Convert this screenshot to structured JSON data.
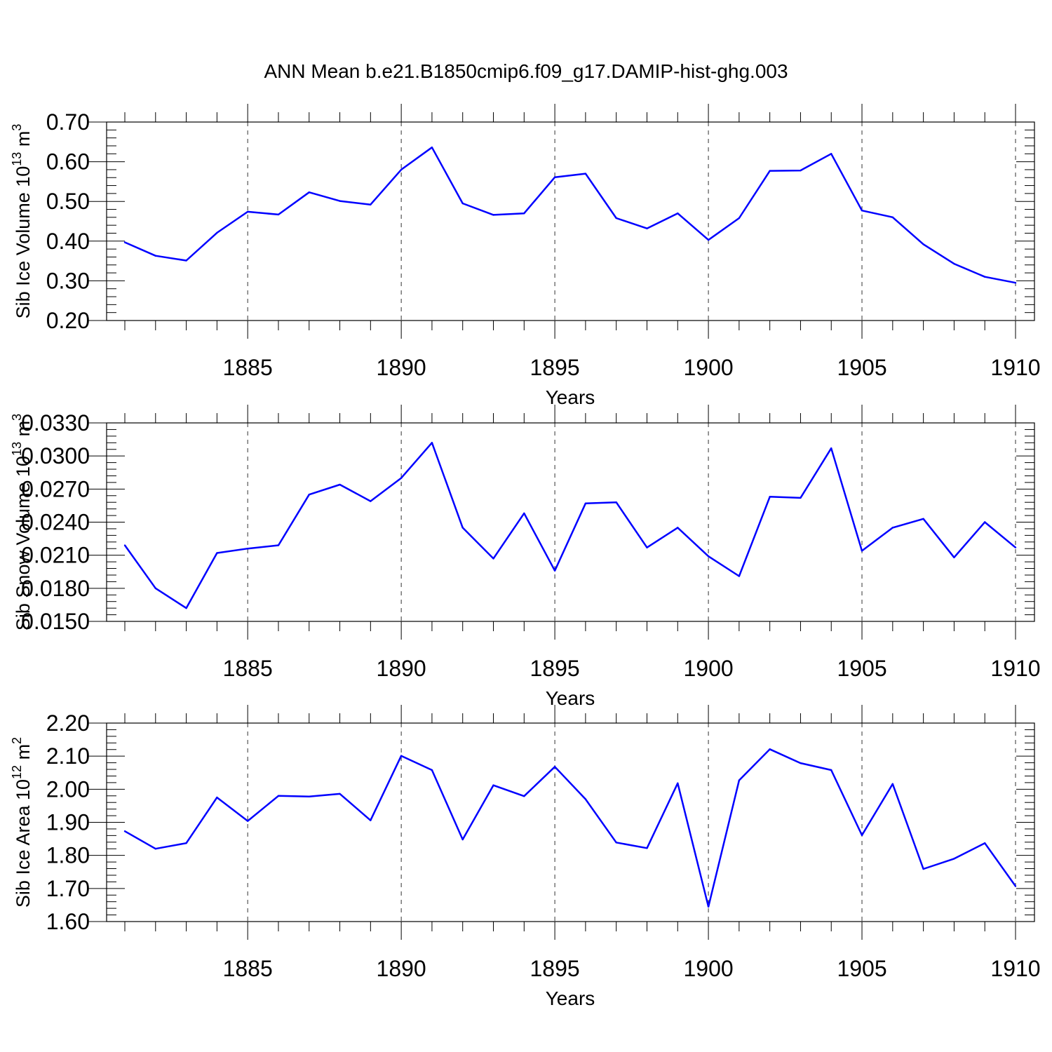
{
  "title": "ANN Mean b.e21.B1850cmip6.f09_g17.DAMIP-hist-ghg.003",
  "chart_data": [
    {
      "type": "line",
      "ylabel_main": "Sib Ice Volume 10",
      "ylabel_exp": "13",
      "ylabel_unit": " m",
      "ylabel_unit_exp": "3",
      "xlabel": "Years",
      "xlim": [
        1881,
        1910
      ],
      "ylim": [
        0.2,
        0.7
      ],
      "yticks": [
        "0.20",
        "0.30",
        "0.40",
        "0.50",
        "0.60",
        "0.70"
      ],
      "xticks": [
        "1885",
        "1890",
        "1895",
        "1900",
        "1905",
        "1910"
      ],
      "x": [
        1881,
        1882,
        1883,
        1884,
        1885,
        1886,
        1887,
        1888,
        1889,
        1890,
        1891,
        1892,
        1893,
        1894,
        1895,
        1896,
        1897,
        1898,
        1899,
        1900,
        1901,
        1902,
        1903,
        1904,
        1905,
        1906,
        1907,
        1908,
        1909,
        1910
      ],
      "values": [
        0.397,
        0.363,
        0.351,
        0.421,
        0.474,
        0.467,
        0.523,
        0.501,
        0.492,
        0.58,
        0.636,
        0.495,
        0.466,
        0.47,
        0.561,
        0.57,
        0.458,
        0.432,
        0.47,
        0.403,
        0.458,
        0.577,
        0.578,
        0.62,
        0.477,
        0.46,
        0.392,
        0.343,
        0.31,
        0.295
      ]
    },
    {
      "type": "line",
      "ylabel_main": "Sib Snow Volume 10",
      "ylabel_exp": "13",
      "ylabel_unit": " m",
      "ylabel_unit_exp": "3",
      "xlabel": "Years",
      "xlim": [
        1881,
        1910
      ],
      "ylim": [
        0.015,
        0.033
      ],
      "yticks": [
        "0.0150",
        "0.0180",
        "0.0210",
        "0.0240",
        "0.0270",
        "0.0300",
        "0.0330"
      ],
      "xticks": [
        "1885",
        "1890",
        "1895",
        "1900",
        "1905",
        "1910"
      ],
      "x": [
        1881,
        1882,
        1883,
        1884,
        1885,
        1886,
        1887,
        1888,
        1889,
        1890,
        1891,
        1892,
        1893,
        1894,
        1895,
        1896,
        1897,
        1898,
        1899,
        1900,
        1901,
        1902,
        1903,
        1904,
        1905,
        1906,
        1907,
        1908,
        1909,
        1910
      ],
      "values": [
        0.0219,
        0.018,
        0.0162,
        0.0212,
        0.0216,
        0.0219,
        0.0265,
        0.0274,
        0.0259,
        0.028,
        0.0312,
        0.0235,
        0.0207,
        0.0248,
        0.0196,
        0.0257,
        0.0258,
        0.0217,
        0.0235,
        0.0209,
        0.0191,
        0.0263,
        0.0262,
        0.0307,
        0.0214,
        0.0235,
        0.0243,
        0.0208,
        0.024,
        0.0217
      ]
    },
    {
      "type": "line",
      "ylabel_main": "Sib Ice Area 10",
      "ylabel_exp": "12",
      "ylabel_unit": " m",
      "ylabel_unit_exp": "2",
      "xlabel": "Years",
      "xlim": [
        1881,
        1910
      ],
      "ylim": [
        1.6,
        2.2
      ],
      "yticks": [
        "1.60",
        "1.70",
        "1.80",
        "1.90",
        "2.00",
        "2.10",
        "2.20"
      ],
      "xticks": [
        "1885",
        "1890",
        "1895",
        "1900",
        "1905",
        "1910"
      ],
      "x": [
        1881,
        1882,
        1883,
        1884,
        1885,
        1886,
        1887,
        1888,
        1889,
        1890,
        1891,
        1892,
        1893,
        1894,
        1895,
        1896,
        1897,
        1898,
        1899,
        1900,
        1901,
        1902,
        1903,
        1904,
        1905,
        1906,
        1907,
        1908,
        1909,
        1910
      ],
      "values": [
        1.873,
        1.82,
        1.837,
        1.975,
        1.904,
        1.98,
        1.978,
        1.986,
        1.906,
        2.101,
        2.058,
        1.848,
        2.012,
        1.979,
        2.068,
        1.97,
        1.839,
        1.822,
        2.018,
        1.645,
        2.027,
        2.121,
        2.079,
        2.058,
        1.861,
        2.016,
        1.759,
        1.79,
        1.837,
        1.707
      ]
    }
  ]
}
